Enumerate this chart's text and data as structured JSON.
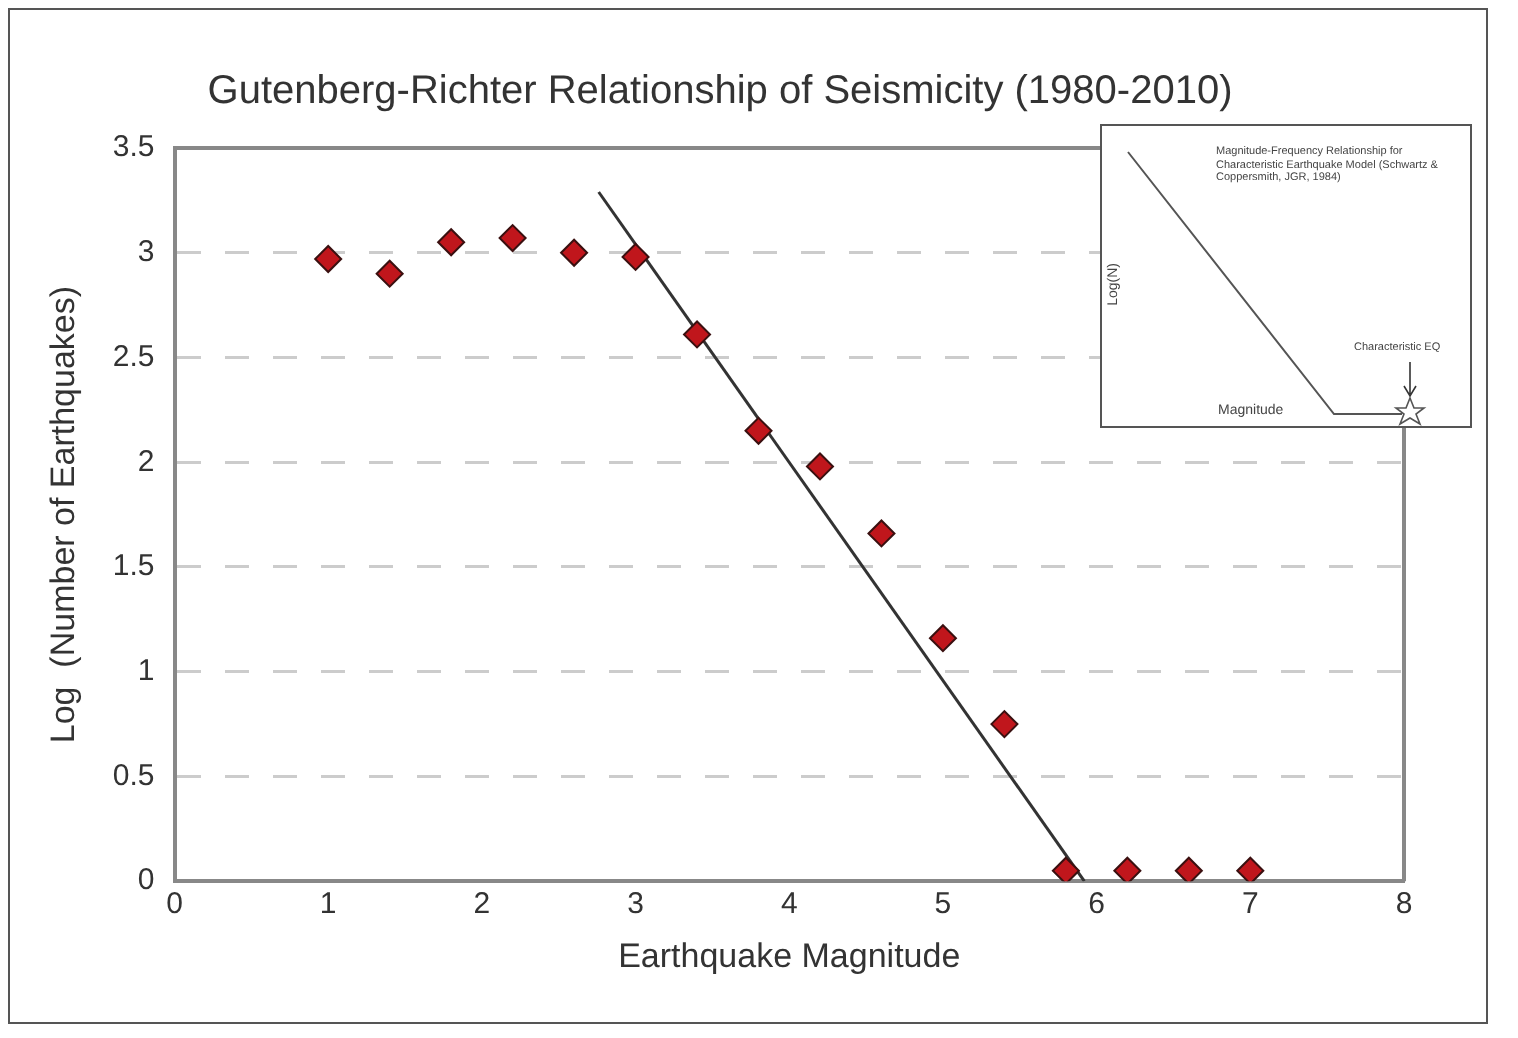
{
  "chart_data": {
    "type": "scatter",
    "title": "Gutenberg-Richter Relationship of Seismicity (1980-2010)",
    "xlabel": "Earthquake Magnitude",
    "ylabel": "Log  (Number of Earthquakes)",
    "xlim": [
      0,
      8
    ],
    "xticks": [
      0,
      1,
      2,
      3,
      4,
      5,
      6,
      7,
      8
    ],
    "ylim": [
      0,
      3.5
    ],
    "yticks": [
      0,
      0.5,
      1,
      1.5,
      2,
      2.5,
      3,
      3.5
    ],
    "grid": "y",
    "legend": false,
    "marker": "diamond",
    "series": [
      {
        "type": "scatter",
        "color": "#c0161c",
        "x": [
          1,
          1.4,
          1.8,
          2.2,
          2.6,
          3,
          3.4,
          3.8,
          4.2,
          4.6,
          5,
          5.4,
          5.8,
          6.2,
          6.6,
          7
        ],
        "values": [
          2.97,
          2.9,
          3.05,
          3.07,
          3.0,
          2.98,
          2.61,
          2.15,
          1.98,
          1.66,
          1.16,
          0.75,
          0.05,
          0.05,
          0.05,
          0.05
        ]
      },
      {
        "type": "line",
        "color": "#333333",
        "marker": "none",
        "line_style": "solid",
        "x": [
          2.76,
          5.92
        ],
        "values": [
          3.29,
          0
        ]
      }
    ],
    "annotations": [
      "Magnitude-Frequency Relationship for Characteristic Earthquake Model (Schwartz & Coppersmith, JGR, 1984)",
      "Log(N)",
      "Magnitude",
      "Characteristic EQ"
    ]
  }
}
